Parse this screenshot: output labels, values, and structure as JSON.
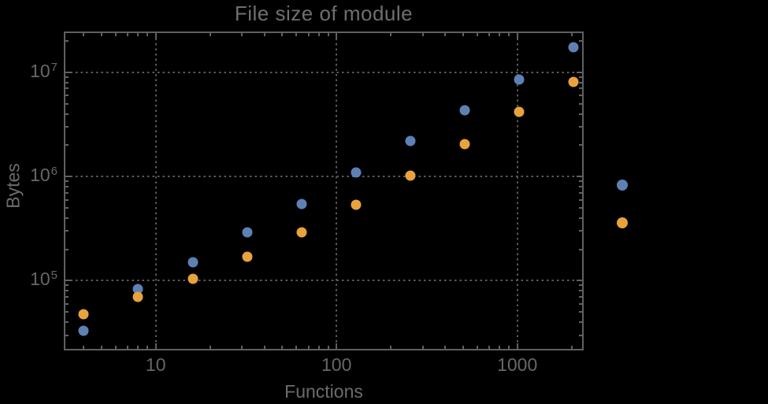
{
  "chart_data": {
    "type": "scatter",
    "title": "File size of module",
    "xlabel": "Functions",
    "ylabel": "Bytes",
    "log_x": true,
    "log_y": true,
    "grid": "dotted, at powers of ten",
    "legend_position": "right of frame, markers only (no visible text)",
    "xlim": [
      3.1,
      2330
    ],
    "ylim": [
      21400,
      24700000
    ],
    "x": [
      4,
      8,
      16,
      32,
      64,
      128,
      256,
      512,
      1024,
      2048
    ],
    "series": [
      {
        "name": "series-1-blue",
        "color": "#5e81b5",
        "values": [
          33000,
          83000,
          150000,
          290000,
          550000,
          1100000,
          2200000,
          4300000,
          8600000,
          17500000
        ]
      },
      {
        "name": "series-2-orange",
        "color": "#e8a33d",
        "values": [
          48000,
          70000,
          105000,
          170000,
          290000,
          540000,
          1020000,
          2050000,
          4200000,
          8100000
        ]
      }
    ],
    "x_ticks": [
      {
        "value": 10,
        "label": "10"
      },
      {
        "value": 100,
        "label": "100"
      },
      {
        "value": 1000,
        "label": "1000"
      }
    ],
    "y_ticks": [
      {
        "value": 100000,
        "base": "10",
        "exponent": "5"
      },
      {
        "value": 1000000,
        "base": "10",
        "exponent": "6"
      },
      {
        "value": 10000000,
        "base": "10",
        "exponent": "7"
      }
    ],
    "gridlines_x": [
      10,
      100,
      1000
    ],
    "gridlines_y": [
      100000,
      1000000,
      10000000
    ],
    "legend_markers": [
      {
        "name": "legend-marker-series-1",
        "color": "#5e81b5"
      },
      {
        "name": "legend-marker-series-2",
        "color": "#e8a33d"
      }
    ],
    "colors": {
      "background": "#000000",
      "frame": "#606060",
      "grid": "#5a5a5a",
      "title_text": "#6f6f6f",
      "tick_label_text": "#676767",
      "axis_label_text": "#6c6c6c"
    }
  }
}
